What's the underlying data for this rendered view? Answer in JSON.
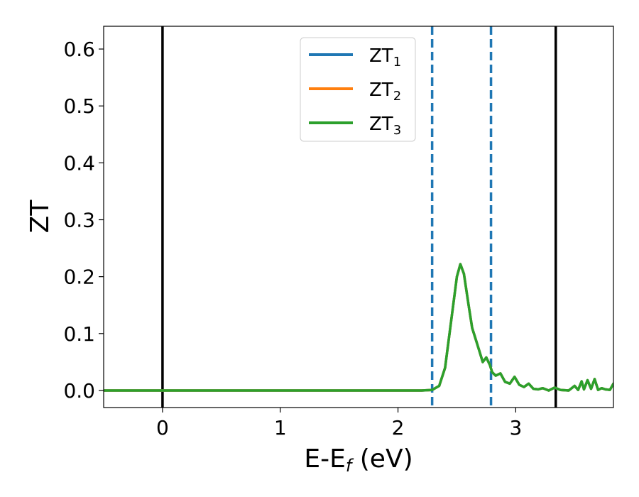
{
  "chart_data": {
    "type": "line",
    "xlabel": {
      "main": "E-E",
      "sub": "f",
      "suffix": " (eV)"
    },
    "ylabel": "ZT",
    "xlim": [
      -0.5,
      3.83
    ],
    "ylim": [
      -0.03,
      0.64
    ],
    "x_ticks": [
      0,
      1,
      2,
      3
    ],
    "x_tick_labels": [
      "0",
      "1",
      "2",
      "3"
    ],
    "y_ticks": [
      0.0,
      0.1,
      0.2,
      0.3,
      0.4,
      0.5,
      0.6
    ],
    "y_tick_labels": [
      "0.0",
      "0.1",
      "0.2",
      "0.3",
      "0.4",
      "0.5",
      "0.6"
    ],
    "grid": false,
    "legend_position": "top-center",
    "vertical_lines": [
      {
        "x": 0.0,
        "style": "solid",
        "color": "#000000"
      },
      {
        "x": 3.34,
        "style": "solid",
        "color": "#000000"
      },
      {
        "x": 2.29,
        "style": "dashed",
        "color": "#1f77b4"
      },
      {
        "x": 2.79,
        "style": "dashed",
        "color": "#1f77b4"
      }
    ],
    "x": [
      -0.5,
      0.0,
      1.0,
      2.0,
      2.2,
      2.29,
      2.35,
      2.4,
      2.45,
      2.5,
      2.53,
      2.56,
      2.6,
      2.63,
      2.66,
      2.69,
      2.72,
      2.75,
      2.78,
      2.8,
      2.83,
      2.87,
      2.91,
      2.95,
      2.99,
      3.03,
      3.07,
      3.11,
      3.15,
      3.19,
      3.23,
      3.28,
      3.33,
      3.38,
      3.45,
      3.5,
      3.53,
      3.56,
      3.58,
      3.61,
      3.64,
      3.67,
      3.7,
      3.73,
      3.76,
      3.8,
      3.83
    ],
    "series": [
      {
        "name": {
          "main": "ZT",
          "sub": "1"
        },
        "color": "#1f77b4",
        "values": [
          0,
          0,
          0,
          0,
          0,
          0.001,
          0.008,
          0.04,
          0.12,
          0.2,
          0.222,
          0.205,
          0.15,
          0.11,
          0.09,
          0.07,
          0.05,
          0.058,
          0.045,
          0.032,
          0.026,
          0.03,
          0.015,
          0.012,
          0.024,
          0.01,
          0.006,
          0.012,
          0.003,
          0.002,
          0.004,
          0.0,
          0.005,
          0.001,
          0.0,
          0.008,
          0.001,
          0.016,
          0.002,
          0.018,
          0.003,
          0.02,
          0.001,
          0.004,
          0.002,
          0.001,
          0.012
        ]
      },
      {
        "name": {
          "main": "ZT",
          "sub": "2"
        },
        "color": "#ff7f0e",
        "values": [
          0,
          0,
          0,
          0,
          0,
          0.001,
          0.008,
          0.04,
          0.12,
          0.2,
          0.222,
          0.205,
          0.15,
          0.11,
          0.09,
          0.07,
          0.05,
          0.058,
          0.045,
          0.032,
          0.026,
          0.03,
          0.015,
          0.012,
          0.024,
          0.01,
          0.006,
          0.012,
          0.003,
          0.002,
          0.004,
          0.0,
          0.005,
          0.001,
          0.0,
          0.008,
          0.001,
          0.016,
          0.002,
          0.018,
          0.003,
          0.02,
          0.001,
          0.004,
          0.002,
          0.001,
          0.012
        ]
      },
      {
        "name": {
          "main": "ZT",
          "sub": "3"
        },
        "color": "#2ca02c",
        "values": [
          0,
          0,
          0,
          0,
          0,
          0.001,
          0.008,
          0.04,
          0.12,
          0.2,
          0.222,
          0.205,
          0.15,
          0.11,
          0.09,
          0.07,
          0.05,
          0.058,
          0.045,
          0.032,
          0.026,
          0.03,
          0.015,
          0.012,
          0.024,
          0.01,
          0.006,
          0.012,
          0.003,
          0.002,
          0.004,
          0.0,
          0.005,
          0.001,
          0.0,
          0.008,
          0.001,
          0.016,
          0.002,
          0.018,
          0.003,
          0.02,
          0.001,
          0.004,
          0.002,
          0.001,
          0.012
        ]
      }
    ]
  }
}
